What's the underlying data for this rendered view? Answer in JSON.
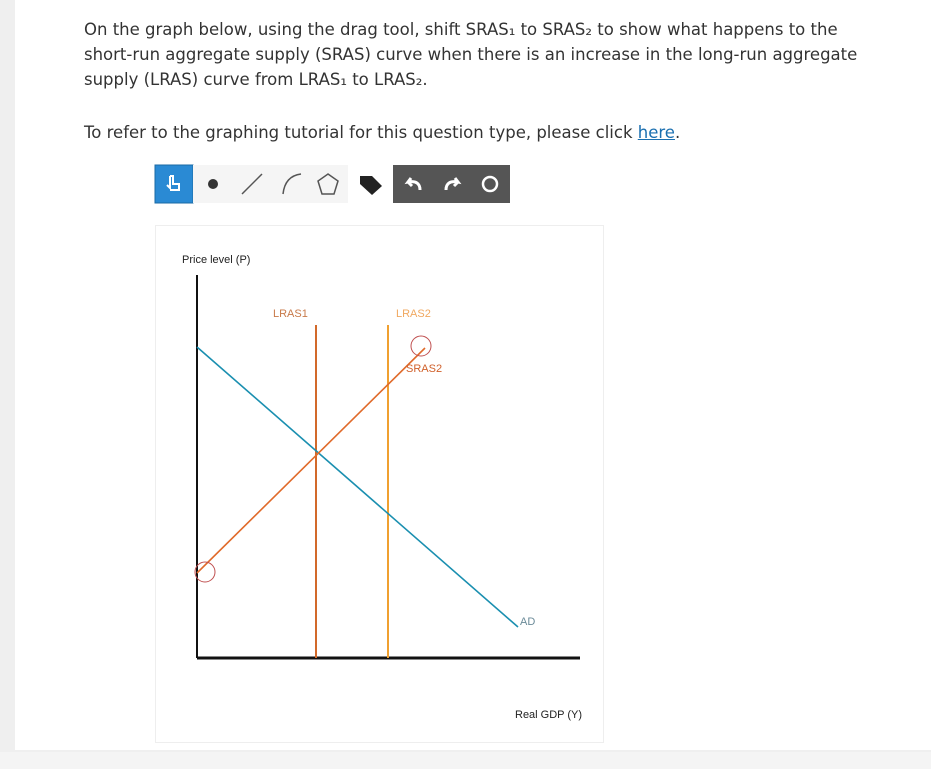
{
  "question": {
    "prompt": "On the graph below, using the drag tool, shift SRAS₁ to SRAS₂ to show what happens to the short-run aggregate supply (SRAS) curve when there is an increase in the long-run aggregate supply (LRAS) curve from LRAS₁ to LRAS₂.",
    "tutorial_text": "To refer to the graphing tutorial for this question type, please click ",
    "tutorial_link": "here",
    "tutorial_end": "."
  },
  "graph": {
    "y_axis_label": "Price level (P)",
    "x_axis_label": "Real GDP (Y)",
    "curves": {
      "lras1": "LRAS1",
      "lras2": "LRAS2",
      "sras2": "SRAS2",
      "ad": "AD"
    }
  }
}
